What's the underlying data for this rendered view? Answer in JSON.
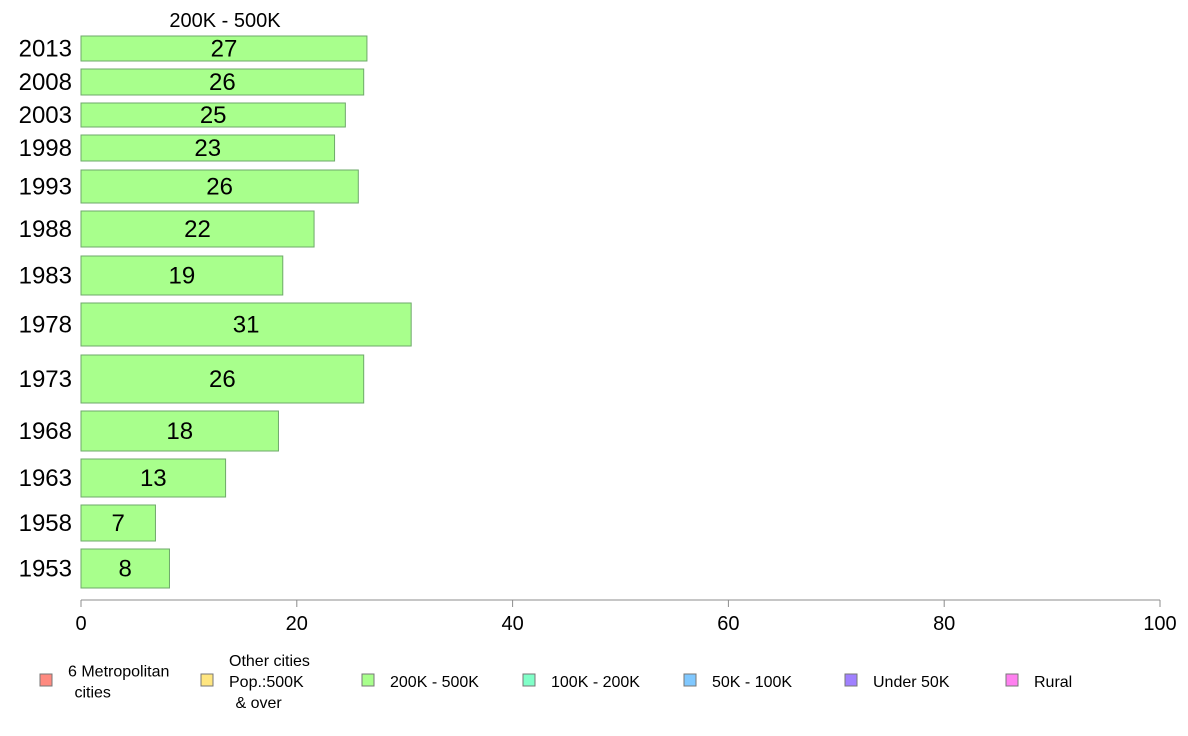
{
  "chart_data": {
    "type": "bar",
    "orientation": "horizontal",
    "title": "200K - 500K",
    "xlabel": "",
    "ylabel": "",
    "xlim": [
      0,
      100
    ],
    "xticks": [
      0,
      20,
      40,
      60,
      80,
      100
    ],
    "grid": false,
    "legend_position": "bottom",
    "categories": [
      "2013",
      "2008",
      "2003",
      "1998",
      "1993",
      "1988",
      "1983",
      "1978",
      "1973",
      "1968",
      "1963",
      "1958",
      "1953"
    ],
    "series": [
      {
        "name": "200K - 500K",
        "color": "#a8ff8c",
        "values": [
          26.5,
          26.2,
          24.5,
          23.5,
          25.7,
          21.6,
          18.7,
          30.6,
          26.2,
          18.3,
          13.4,
          6.9,
          8.2
        ],
        "labels": [
          "27",
          "26",
          "25",
          "23",
          "26",
          "22",
          "19",
          "31",
          "26",
          "18",
          "13",
          "7",
          "8"
        ]
      }
    ],
    "legend": [
      {
        "label": "6 Metropolitan\n cities",
        "color": "#ff8a80"
      },
      {
        "label": "Other cities\nPop.:500K\n & over",
        "color": "#ffe680"
      },
      {
        "label": "200K - 500K",
        "color": "#a8ff8c"
      },
      {
        "label": "100K - 200K",
        "color": "#80ffc8"
      },
      {
        "label": "50K - 100K",
        "color": "#80c8ff"
      },
      {
        "label": "Under 50K",
        "color": "#a080ff"
      },
      {
        "label": "Rural",
        "color": "#ff80f0"
      }
    ]
  }
}
